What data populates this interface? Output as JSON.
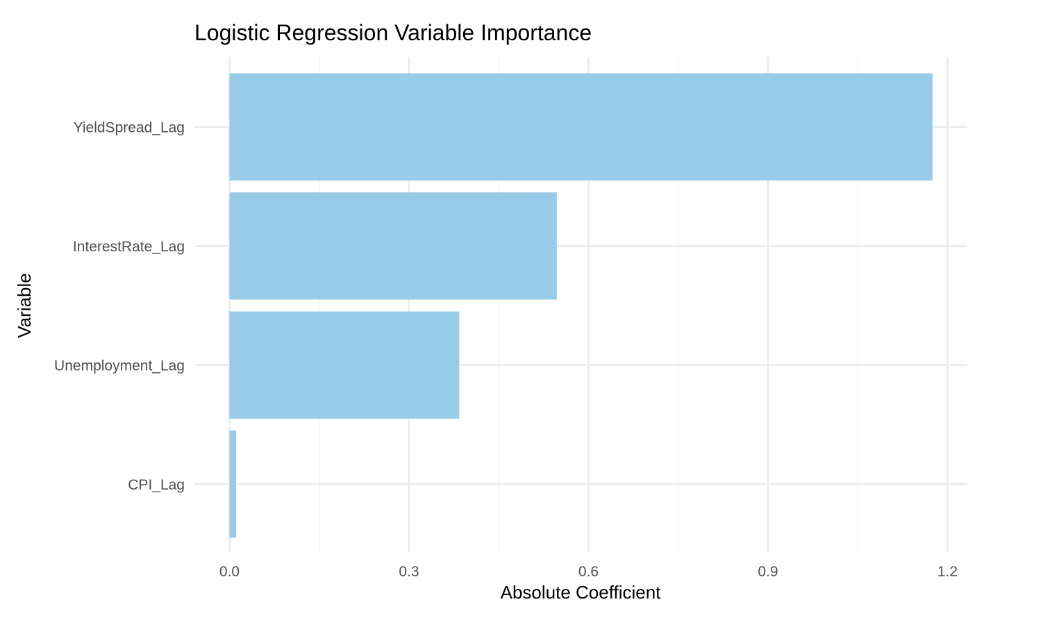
{
  "chart_data": {
    "type": "bar",
    "orientation": "horizontal",
    "title": "Logistic Regression Variable Importance",
    "xlabel": "Absolute Coefficient",
    "ylabel": "Variable",
    "categories": [
      "YieldSpread_Lag",
      "InterestRate_Lag",
      "Unemployment_Lag",
      "CPI_Lag"
    ],
    "values": [
      1.175,
      0.547,
      0.384,
      0.011
    ],
    "xlim": [
      0,
      1.2
    ],
    "x_ticks": [
      "0.0",
      "0.3",
      "0.6",
      "0.9",
      "1.2"
    ],
    "x_tick_values": [
      0,
      0.3,
      0.6,
      0.9,
      1.2
    ],
    "bar_color": "#98cbe8",
    "grid": true,
    "legend": "none"
  }
}
